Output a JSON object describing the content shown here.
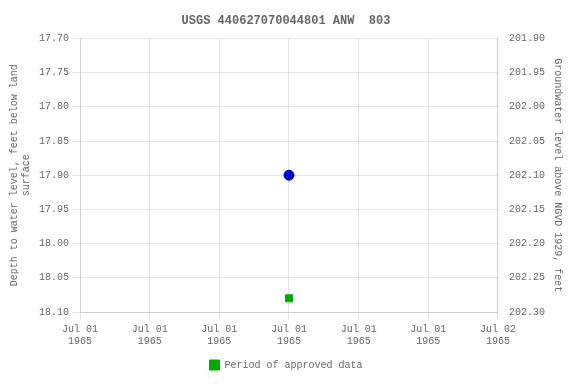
{
  "chart_data": {
    "type": "scatter",
    "title": "USGS 440627070044801 ANW  803",
    "categories": [
      "Jul 01\n1965",
      "Jul 01\n1965",
      "Jul 01\n1965",
      "Jul 01\n1965",
      "Jul 01\n1965",
      "Jul 01\n1965",
      "Jul 02\n1965"
    ],
    "series": [
      {
        "color": "#0000cc",
        "marker": "circle",
        "values": [
          null,
          null,
          null,
          17.9,
          null,
          null,
          null
        ]
      },
      {
        "name": "Period of approved data",
        "color": "#00aa00",
        "marker": "square",
        "values": [
          null,
          null,
          null,
          18.08,
          null,
          null,
          null
        ]
      }
    ],
    "ylabel": "Depth to water level, feet below land\nsurface",
    "y2label": "Groundwater level above NGVD 1929, feet",
    "ylim": [
      18.1,
      17.7
    ],
    "yticks": [
      {
        "value": 17.7,
        "label": "17.70"
      },
      {
        "value": 17.75,
        "label": "17.75"
      },
      {
        "value": 17.8,
        "label": "17.80"
      },
      {
        "value": 17.85,
        "label": "17.85"
      },
      {
        "value": 17.9,
        "label": "17.90"
      },
      {
        "value": 17.95,
        "label": "17.95"
      },
      {
        "value": 18.0,
        "label": "18.00"
      },
      {
        "value": 18.05,
        "label": "18.05"
      },
      {
        "value": 18.1,
        "label": "18.10"
      }
    ],
    "y2lim": [
      202.3,
      201.9
    ],
    "y2ticks": [
      {
        "value": 202.3,
        "label": "202.30"
      },
      {
        "value": 202.25,
        "label": "202.25"
      },
      {
        "value": 202.2,
        "label": "202.20"
      },
      {
        "value": 202.15,
        "label": "202.15"
      },
      {
        "value": 202.1,
        "label": "202.10"
      },
      {
        "value": 202.05,
        "label": "202.05"
      },
      {
        "value": 202.0,
        "label": "202.00"
      },
      {
        "value": 201.95,
        "label": "201.95"
      },
      {
        "value": 201.9,
        "label": "201.90"
      }
    ],
    "grid": true,
    "legend": "bottom"
  }
}
